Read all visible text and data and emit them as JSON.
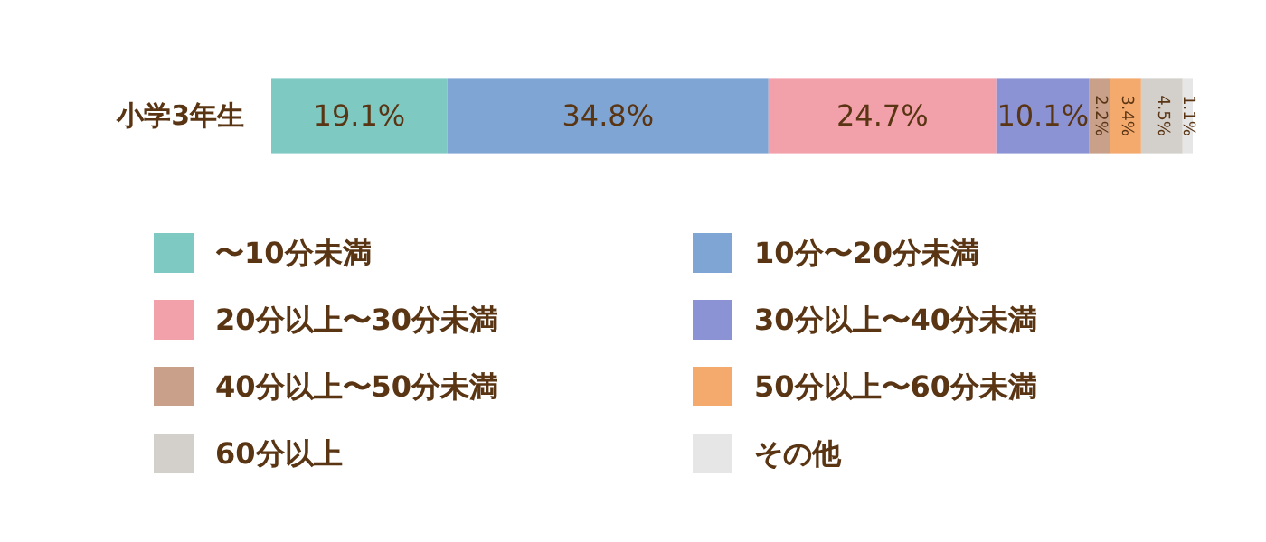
{
  "chart_data": {
    "type": "bar",
    "orientation": "horizontal",
    "stacked": true,
    "categories": [
      "小学3年生"
    ],
    "xlim": [
      0,
      100
    ],
    "tick_labels": "y",
    "legend": "bottom",
    "series": [
      {
        "name": "〜10分未満",
        "color": "#7ecac3",
        "values": [
          19.1
        ],
        "value_labels": [
          "19.1%"
        ]
      },
      {
        "name": "10分〜20分未満",
        "color": "#7fa5d4",
        "values": [
          34.8
        ],
        "value_labels": [
          "34.8%"
        ]
      },
      {
        "name": "20分以上〜30分未満",
        "color": "#f2a1ab",
        "values": [
          24.7
        ],
        "value_labels": [
          "24.7%"
        ]
      },
      {
        "name": "30分以上〜40分未満",
        "color": "#8c93d4",
        "values": [
          10.1
        ],
        "value_labels": [
          "10.1%"
        ]
      },
      {
        "name": "40分以上〜50分未満",
        "color": "#c9a08a",
        "values": [
          2.2
        ],
        "value_labels": [
          "2.2%"
        ]
      },
      {
        "name": "50分以上〜60分未満",
        "color": "#f4a96d",
        "values": [
          3.4
        ],
        "value_labels": [
          "3.4%"
        ]
      },
      {
        "name": "60分以上",
        "color": "#d3cfca",
        "values": [
          4.5
        ],
        "value_labels": [
          "4.5%"
        ]
      },
      {
        "name": "その他",
        "color": "#e6e6e6",
        "values": [
          1.1
        ],
        "value_labels": [
          "1.1%"
        ]
      }
    ]
  }
}
